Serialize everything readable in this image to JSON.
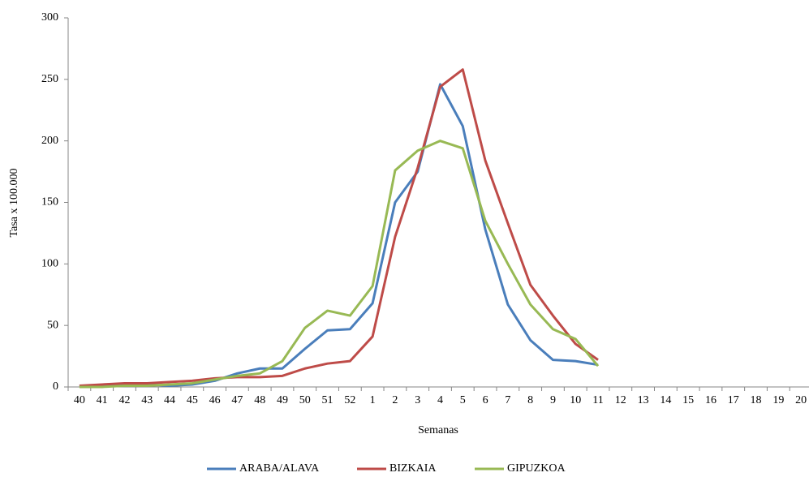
{
  "chart_data": {
    "type": "line",
    "y_label": "Tasa x 100.000",
    "x_label": "Semanas",
    "categories": [
      "40",
      "41",
      "42",
      "43",
      "44",
      "45",
      "46",
      "47",
      "48",
      "49",
      "50",
      "51",
      "52",
      "1",
      "2",
      "3",
      "4",
      "5",
      "6",
      "7",
      "8",
      "9",
      "10",
      "11",
      "12",
      "13",
      "14",
      "15",
      "16",
      "17",
      "18",
      "19",
      "20"
    ],
    "series": [
      {
        "name": "ARABA/ALAVA",
        "color": "#4a7ebb",
        "values": [
          1,
          1,
          2,
          2,
          1,
          2,
          5,
          11,
          15,
          15,
          31,
          46,
          47,
          68,
          150,
          175,
          246,
          212,
          128,
          67,
          38,
          22,
          21,
          18,
          null,
          null,
          null,
          null,
          null,
          null,
          null,
          null,
          null
        ]
      },
      {
        "name": "BIZKAIA",
        "color": "#be4b48",
        "values": [
          1,
          2,
          3,
          3,
          4,
          5,
          7,
          8,
          8,
          9,
          15,
          19,
          21,
          41,
          122,
          178,
          244,
          258,
          184,
          133,
          83,
          58,
          35,
          22,
          null,
          null,
          null,
          null,
          null,
          null,
          null,
          null,
          null
        ]
      },
      {
        "name": "GIPUZKOA",
        "color": "#98b954",
        "values": [
          0,
          0,
          1,
          1,
          2,
          3,
          6,
          9,
          11,
          21,
          48,
          62,
          58,
          82,
          176,
          192,
          200,
          194,
          135,
          100,
          67,
          47,
          39,
          17,
          null,
          null,
          null,
          null,
          null,
          null,
          null,
          null,
          null
        ]
      }
    ],
    "ylim": [
      0,
      300
    ],
    "yticks": [
      0,
      50,
      100,
      150,
      200,
      250,
      300
    ],
    "grid": false,
    "legend": "bottom"
  }
}
